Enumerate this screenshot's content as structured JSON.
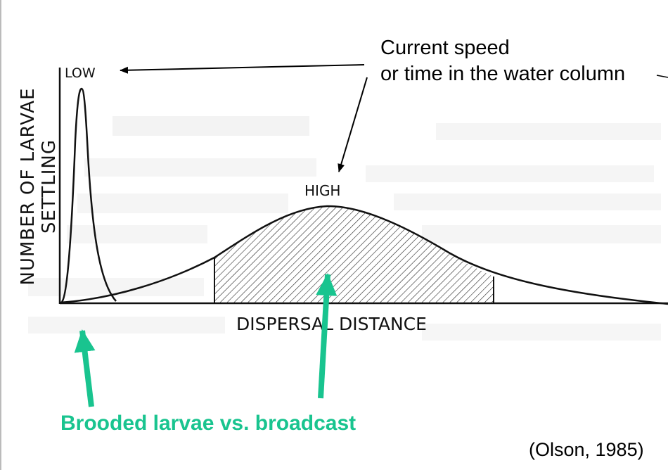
{
  "caption": {
    "line1": "Current speed",
    "line2": "or time in the water column"
  },
  "figure": {
    "y_axis_label_line1": "NUMBER OF LARVAE",
    "y_axis_label_line2": "SETTLING",
    "x_axis_label": "DISPERSAL DISTANCE",
    "low_label": "LOW",
    "high_label": "HIGH"
  },
  "annotation": {
    "bottom_label": "Brooded larvae vs. broadcast",
    "accent_color": "#19c48f"
  },
  "citation": "(Olson, 1985)"
}
